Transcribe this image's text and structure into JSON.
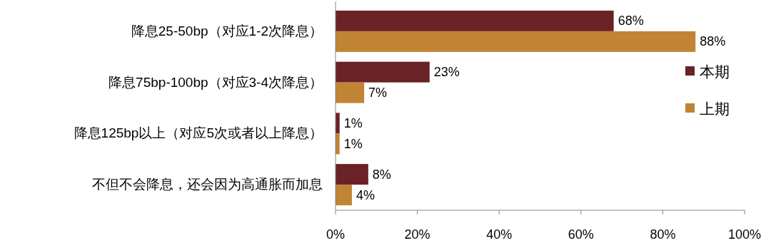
{
  "chart_data": {
    "type": "bar",
    "orientation": "horizontal",
    "categories": [
      "降息25-50bp（对应1-2次降息）",
      "降息75bp-100bp（对应3-4次降息）",
      "降息125bp以上（对应5次或者以上降息）",
      "不但不会降息，还会因为高通胀而加息"
    ],
    "series": [
      {
        "name": "本期",
        "color": "#6b2226",
        "values": [
          68,
          23,
          1,
          8
        ],
        "value_labels": [
          "68%",
          "23%",
          "1%",
          "8%"
        ]
      },
      {
        "name": "上期",
        "color": "#c08434",
        "values": [
          88,
          7,
          1,
          4
        ],
        "value_labels": [
          "88%",
          "7%",
          "1%",
          "4%"
        ]
      }
    ],
    "xlim": [
      0,
      100
    ],
    "xticks": [
      {
        "value": 0,
        "label": "0%"
      },
      {
        "value": 20,
        "label": "20%"
      },
      {
        "value": 40,
        "label": "40%"
      },
      {
        "value": 60,
        "label": "60%"
      },
      {
        "value": 80,
        "label": "80%"
      },
      {
        "value": 100,
        "label": "100%"
      }
    ],
    "legend": "right"
  }
}
